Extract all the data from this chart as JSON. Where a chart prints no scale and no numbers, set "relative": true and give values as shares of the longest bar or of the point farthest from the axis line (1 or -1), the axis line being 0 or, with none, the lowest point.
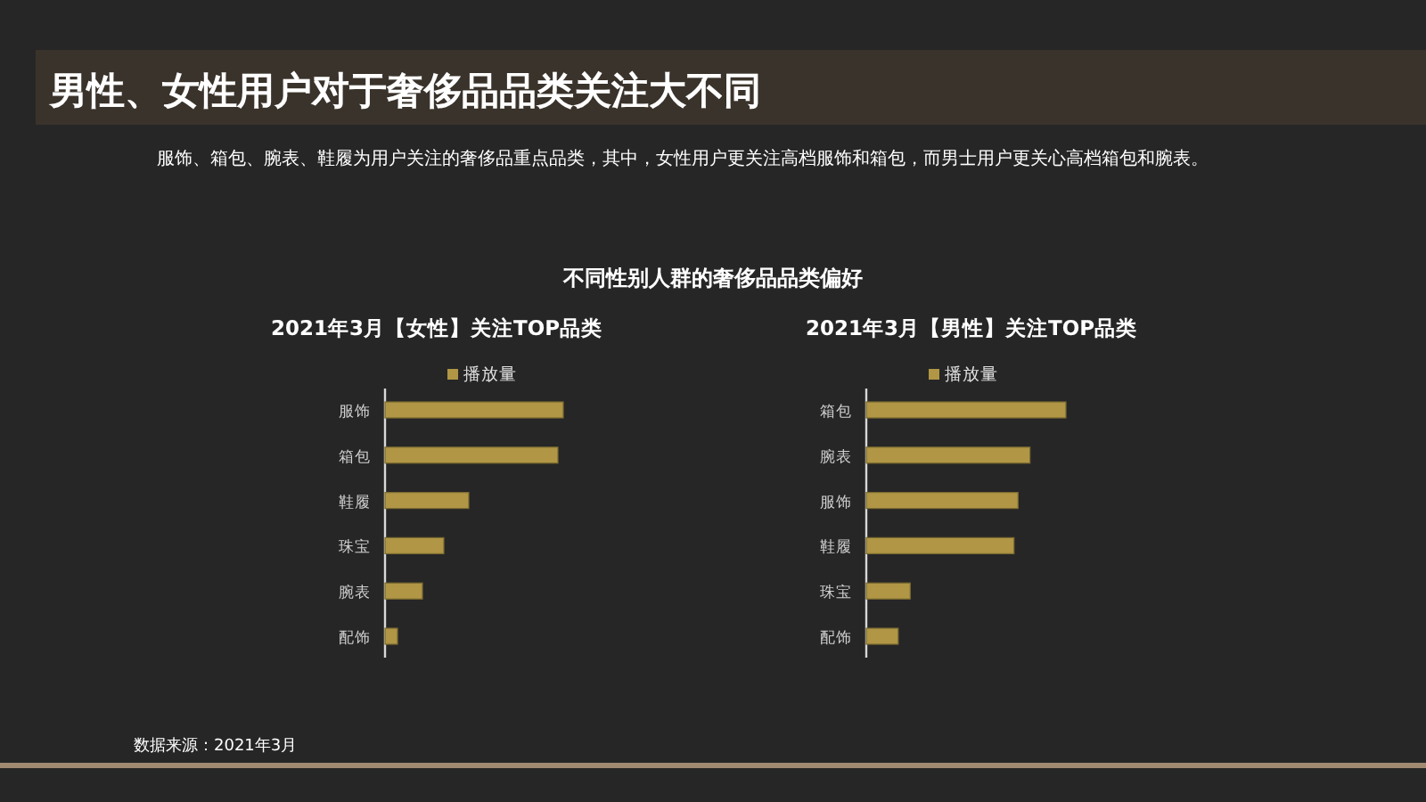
{
  "chart_data": [
    {
      "type": "bar",
      "orientation": "horizontal",
      "relative": true,
      "title": "2021年3月【女性】关注TOP品类",
      "legend": "top",
      "categories": [
        "服饰",
        "箱包",
        "鞋履",
        "珠宝",
        "腕表",
        "配饰"
      ],
      "series": [
        {
          "name": "播放量",
          "color": "#b09645",
          "values": [
            1,
            0.97,
            0.47,
            0.33,
            0.21,
            0.07
          ]
        }
      ],
      "annotations": [
        "男性、女性用户对于奢侈品品类关注大不同",
        "服饰、箱包、腕表、鞋履为用户关注的奢侈品重点品类，其中，女性用户更关注高档服饰和箱包，而男士用户更关心高档箱包和腕表。",
        "不同性别人群的奢侈品品类偏好",
        "数据来源：2021年3月"
      ]
    },
    {
      "type": "bar",
      "orientation": "horizontal",
      "relative": true,
      "title": "2021年3月【男性】关注TOP品类",
      "legend": "top",
      "categories": [
        "箱包",
        "腕表",
        "服饰",
        "鞋履",
        "珠宝",
        "配饰"
      ],
      "series": [
        {
          "name": "播放量",
          "color": "#b09645",
          "values": [
            1,
            0.82,
            0.76,
            0.74,
            0.22,
            0.16
          ]
        }
      ]
    }
  ]
}
